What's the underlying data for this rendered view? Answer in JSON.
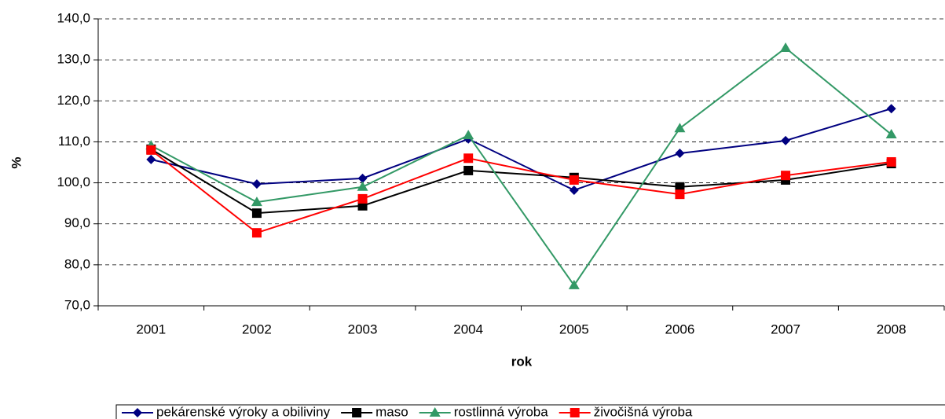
{
  "chart_data": {
    "type": "line",
    "x_label": "rok",
    "y_label": "%",
    "categories": [
      "2001",
      "2002",
      "2003",
      "2004",
      "2005",
      "2006",
      "2007",
      "2008"
    ],
    "series": [
      {
        "name": "pekárenské výroky a obiliviny",
        "color": "#000080",
        "marker": "diamond",
        "values": [
          105.7,
          99.7,
          101.1,
          110.7,
          98.2,
          107.2,
          110.3,
          118.1
        ]
      },
      {
        "name": "maso",
        "color": "#000000",
        "marker": "square",
        "values": [
          108.2,
          92.6,
          94.4,
          103.0,
          101.3,
          99.0,
          100.7,
          104.7
        ]
      },
      {
        "name": "rostlinná výroba",
        "color": "#339966",
        "marker": "triangle",
        "values": [
          109.1,
          95.3,
          99.0,
          111.6,
          75.0,
          113.3,
          132.9,
          111.8
        ]
      },
      {
        "name": "živočišná výroba",
        "color": "#ff0000",
        "marker": "square",
        "values": [
          108.0,
          87.8,
          96.1,
          106.0,
          100.7,
          97.2,
          101.8,
          105.1
        ]
      }
    ],
    "ylim": [
      70,
      140
    ],
    "yticks": [
      {
        "value": 70,
        "label": "70,0"
      },
      {
        "value": 80,
        "label": "80,0"
      },
      {
        "value": 90,
        "label": "90,0"
      },
      {
        "value": 100,
        "label": "100,0"
      },
      {
        "value": 110,
        "label": "110,0"
      },
      {
        "value": 120,
        "label": "120,0"
      },
      {
        "value": 130,
        "label": "130,0"
      },
      {
        "value": 140,
        "label": "140,0"
      }
    ],
    "grid": true,
    "legend": "bottom"
  }
}
